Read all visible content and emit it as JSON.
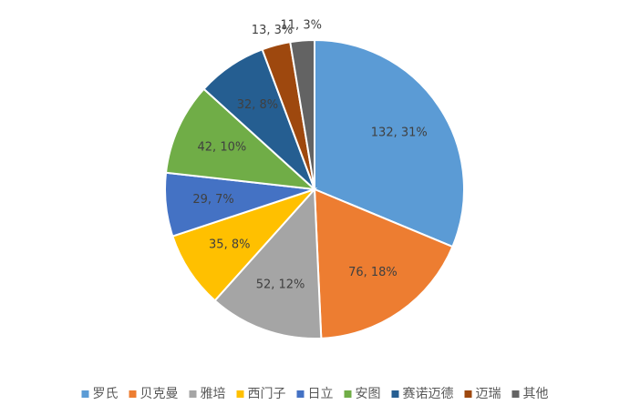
{
  "chart_data": {
    "type": "pie",
    "categories": [
      "罗氏",
      "贝克曼",
      "雅培",
      "西门子",
      "日立",
      "安图",
      "赛诺迈德",
      "迈瑞",
      "其他"
    ],
    "values": [
      132,
      76,
      52,
      35,
      29,
      42,
      32,
      13,
      11
    ],
    "value_labels": [
      "132, 31%",
      "76, 18%",
      "52, 12%",
      "35, 8%",
      "29, 7%",
      "42, 10%",
      "32, 8%",
      "13, 3%",
      "11, 3%"
    ],
    "colors": [
      "#5b9bd5",
      "#ed7d31",
      "#a5a5a5",
      "#ffc000",
      "#4472c4",
      "#70ad47",
      "#255e91",
      "#9e480e",
      "#636363"
    ],
    "legend": "bottom"
  }
}
